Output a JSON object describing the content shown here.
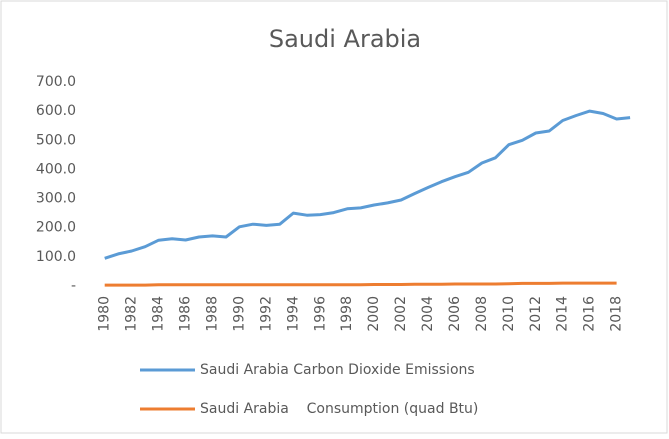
{
  "chart_data": {
    "type": "line",
    "title": "Saudi Arabia",
    "categories": [
      "1980",
      null,
      "1982",
      null,
      "1984",
      null,
      "1986",
      null,
      "1988",
      null,
      "1990",
      null,
      "1992",
      null,
      "1994",
      null,
      "1996",
      null,
      "1998",
      null,
      "2000",
      null,
      "2002",
      null,
      "2004",
      null,
      "2006",
      null,
      "2008",
      null,
      "2010",
      null,
      "2012",
      null,
      "2014",
      null,
      "2016",
      null,
      "2018",
      null
    ],
    "series": [
      {
        "name": "Saudi Arabia Carbon Dioxide Emissions",
        "color": "#5b9bd5",
        "values": [
          95,
          110,
          120,
          135,
          157,
          162,
          158,
          168,
          172,
          168,
          203,
          212,
          208,
          212,
          250,
          243,
          245,
          252,
          265,
          268,
          278,
          285,
          295,
          317,
          338,
          358,
          375,
          390,
          422,
          440,
          485,
          500,
          525,
          532,
          568,
          585,
          600,
          592,
          573,
          578
        ]
      },
      {
        "name": "Saudi Arabia    Consumption (quad Btu)",
        "color": "#ed7d31",
        "values": [
          3,
          3,
          3,
          3,
          4,
          4,
          4,
          4,
          4,
          4,
          4,
          4,
          4,
          4,
          4,
          4,
          4,
          4,
          4,
          4,
          5,
          5,
          5,
          6,
          6,
          6,
          7,
          7,
          7,
          7,
          8,
          9,
          9,
          9,
          10,
          10,
          10,
          10,
          10,
          null
        ]
      }
    ],
    "ylim": [
      0,
      700
    ],
    "yticks": [
      {
        "value": 0,
        "label": "-"
      },
      {
        "value": 100,
        "label": "100.0"
      },
      {
        "value": 200,
        "label": "200.0"
      },
      {
        "value": 300,
        "label": "300.0"
      },
      {
        "value": 400,
        "label": "400.0"
      },
      {
        "value": 500,
        "label": "500.0"
      },
      {
        "value": 600,
        "label": "600.0"
      },
      {
        "value": 700,
        "label": "700.0"
      }
    ]
  }
}
